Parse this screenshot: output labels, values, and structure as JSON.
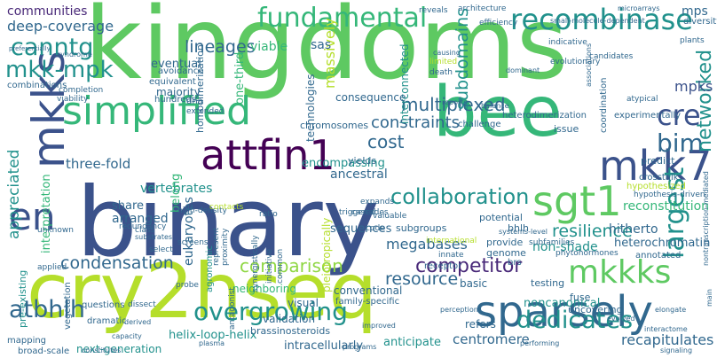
{
  "words": [
    {
      "text": "kingdoms",
      "color": "#5ec962"
    },
    {
      "text": "binary",
      "color": "#3b528b"
    },
    {
      "text": "cry2hseq",
      "color": "#b5de2b"
    },
    {
      "text": "bee",
      "color": "#35b779"
    },
    {
      "text": "attfin1",
      "color": "#440154"
    },
    {
      "text": "simplified",
      "color": "#35b779"
    },
    {
      "text": "sparsely",
      "color": "#31688e"
    },
    {
      "text": "mkks",
      "color": "#3b528b"
    },
    {
      "text": "en",
      "color": "#3b528b"
    },
    {
      "text": "sgt1",
      "color": "#5ec962"
    },
    {
      "text": "mkk7",
      "color": "#3b528b"
    },
    {
      "text": "mkkks",
      "color": "#5ec962"
    },
    {
      "text": "recombinase",
      "color": "#21918c"
    },
    {
      "text": "fundamental",
      "color": "#35b779"
    },
    {
      "text": "overgrowing",
      "color": "#21918c"
    },
    {
      "text": "dedicates",
      "color": "#21918c"
    },
    {
      "text": "mkk-mpk",
      "color": "#21918c"
    },
    {
      "text": "largest",
      "color": "#21918c"
    },
    {
      "text": "canntg",
      "color": "#21918c"
    },
    {
      "text": "atbhlh",
      "color": "#31688e"
    },
    {
      "text": "cre",
      "color": "#3b528b"
    },
    {
      "text": "bim",
      "color": "#31688e"
    },
    {
      "text": "networked",
      "color": "#21918c"
    },
    {
      "text": "collaboration",
      "color": "#21918c"
    },
    {
      "text": "competitor",
      "color": "#482878"
    },
    {
      "text": "resource",
      "color": "#31688e"
    },
    {
      "text": "condensation",
      "color": "#31688e"
    },
    {
      "text": "comparison",
      "color": "#8fd744"
    },
    {
      "text": "multiplexed",
      "color": "#31688e"
    },
    {
      "text": "resilience",
      "color": "#21918c"
    },
    {
      "text": "lineages",
      "color": "#31688e"
    },
    {
      "text": "deep-coverage",
      "color": "#31688e"
    },
    {
      "text": "communities",
      "color": "#482878"
    },
    {
      "text": "subdomains",
      "color": "#21918c"
    },
    {
      "text": "constraints",
      "color": "#31688e"
    },
    {
      "text": "megabases",
      "color": "#31688e"
    },
    {
      "text": "recapitulates",
      "color": "#31688e"
    },
    {
      "text": "cost",
      "color": "#31688e"
    },
    {
      "text": "mps",
      "color": "#31688e"
    },
    {
      "text": "mpks",
      "color": "#3b528b"
    },
    {
      "text": "appreciated",
      "color": "#21918c"
    },
    {
      "text": "three-fold",
      "color": "#31688e"
    },
    {
      "text": "vertebrates",
      "color": "#21918c"
    },
    {
      "text": "encompassing",
      "color": "#21918c"
    },
    {
      "text": "interpretation",
      "color": "#35b779"
    },
    {
      "text": "condensation",
      "color": "#31688e"
    },
    {
      "text": "non-shade",
      "color": "#21918c"
    },
    {
      "text": "noncanonical",
      "color": "#21918c"
    },
    {
      "text": "centromere",
      "color": "#31688e"
    },
    {
      "text": "intracellularly",
      "color": "#31688e"
    },
    {
      "text": "helix-loop-helix",
      "color": "#21918c"
    },
    {
      "text": "next-generation",
      "color": "#21918c"
    },
    {
      "text": "anticipate",
      "color": "#21918c"
    },
    {
      "text": "massively",
      "color": "#b5de2b"
    },
    {
      "text": "homodimerization",
      "color": "#31688e"
    },
    {
      "text": "one-third",
      "color": "#35b779"
    },
    {
      "text": "eventual",
      "color": "#31688e"
    },
    {
      "text": "majority",
      "color": "#31688e"
    },
    {
      "text": "avoidance",
      "color": "#31688e"
    },
    {
      "text": "equivalent",
      "color": "#31688e"
    },
    {
      "text": "hundreds",
      "color": "#31688e"
    },
    {
      "text": "dna",
      "color": "#31688e"
    },
    {
      "text": "viable",
      "color": "#35b779"
    },
    {
      "text": "sas",
      "color": "#31688e"
    },
    {
      "text": "combinations",
      "color": "#31688e"
    },
    {
      "text": "completion",
      "color": "#31688e"
    },
    {
      "text": "viability",
      "color": "#31688e"
    },
    {
      "text": "pre-existing",
      "color": "#21918c"
    },
    {
      "text": "agronomic",
      "color": "#21918c"
    },
    {
      "text": "eukaryotes",
      "color": "#31688e"
    },
    {
      "text": "arranged",
      "color": "#31688e"
    },
    {
      "text": "share",
      "color": "#31688e"
    },
    {
      "text": "belong",
      "color": "#35b779"
    },
    {
      "text": "pleiotropically",
      "color": "#b5de2b"
    },
    {
      "text": "ancestral",
      "color": "#31688e"
    },
    {
      "text": "yields",
      "color": "#31688e"
    },
    {
      "text": "bhlh",
      "color": "#31688e"
    },
    {
      "text": "potential",
      "color": "#31688e"
    },
    {
      "text": "hitherto",
      "color": "#31688e"
    },
    {
      "text": "reconstitution",
      "color": "#35b779"
    },
    {
      "text": "heterochromatin",
      "color": "#31688e"
    },
    {
      "text": "annotated",
      "color": "#31688e"
    },
    {
      "text": "sequences",
      "color": "#31688e"
    },
    {
      "text": "subgroups",
      "color": "#31688e"
    },
    {
      "text": "visual",
      "color": "#31688e"
    },
    {
      "text": "validation",
      "color": "#31688e"
    },
    {
      "text": "neighboring",
      "color": "#35b779"
    },
    {
      "text": "brassinosteroids",
      "color": "#31688e"
    },
    {
      "text": "conventional",
      "color": "#31688e"
    },
    {
      "text": "family-specific",
      "color": "#31688e"
    },
    {
      "text": "basic",
      "color": "#31688e"
    },
    {
      "text": "refers",
      "color": "#31688e"
    },
    {
      "text": "testing",
      "color": "#31688e"
    },
    {
      "text": "fuse",
      "color": "#31688e"
    },
    {
      "text": "uncovering",
      "color": "#31688e"
    },
    {
      "text": "technologies",
      "color": "#31688e"
    },
    {
      "text": "interconnected",
      "color": "#21918c"
    },
    {
      "text": "chromosomes",
      "color": "#31688e"
    },
    {
      "text": "consequence",
      "color": "#31688e"
    },
    {
      "text": "experimentally",
      "color": "#31688e"
    },
    {
      "text": "coordination",
      "color": "#31688e"
    },
    {
      "text": "issue",
      "color": "#31688e"
    },
    {
      "text": "predict",
      "color": "#31688e"
    },
    {
      "text": "crosstalk",
      "color": "#31688e"
    },
    {
      "text": "hypothesized",
      "color": "#b5de2b"
    },
    {
      "text": "hypothesis-driven",
      "color": "#31688e"
    },
    {
      "text": "subfamilies",
      "color": "#31688e"
    },
    {
      "text": "phytohormones",
      "color": "#31688e"
    },
    {
      "text": "provide",
      "color": "#31688e"
    },
    {
      "text": "genome",
      "color": "#31688e"
    },
    {
      "text": "brs",
      "color": "#31688e"
    },
    {
      "text": "international",
      "color": "#b5de2b"
    },
    {
      "text": "receptor",
      "color": "#31688e"
    },
    {
      "text": "innate",
      "color": "#31688e"
    },
    {
      "text": "mapping",
      "color": "#31688e"
    },
    {
      "text": "vegetation",
      "color": "#31688e"
    },
    {
      "text": "questions",
      "color": "#31688e"
    },
    {
      "text": "dramatic",
      "color": "#31688e"
    },
    {
      "text": "broad-scale",
      "color": "#31688e"
    },
    {
      "text": "unknown",
      "color": "#31688e"
    },
    {
      "text": "applied",
      "color": "#31688e"
    },
    {
      "text": "class",
      "color": "#31688e"
    },
    {
      "text": "select",
      "color": "#31688e"
    },
    {
      "text": "probe",
      "color": "#31688e"
    },
    {
      "text": "dissect",
      "color": "#31688e"
    },
    {
      "text": "redundancy",
      "color": "#31688e"
    },
    {
      "text": "screens",
      "color": "#31688e"
    },
    {
      "text": "proximity",
      "color": "#31688e"
    },
    {
      "text": "represent",
      "color": "#31688e"
    },
    {
      "text": "high-density",
      "color": "#31688e"
    },
    {
      "text": "synergistically",
      "color": "#31688e"
    },
    {
      "text": "initiative",
      "color": "#31688e"
    },
    {
      "text": "common",
      "color": "#31688e"
    },
    {
      "text": "antagonist",
      "color": "#31688e"
    },
    {
      "text": "ratio",
      "color": "#31688e"
    },
    {
      "text": "triggered",
      "color": "#31688e"
    },
    {
      "text": "expands",
      "color": "#31688e"
    },
    {
      "text": "cascades",
      "color": "#31688e"
    },
    {
      "text": "valuable",
      "color": "#31688e"
    },
    {
      "text": "code",
      "color": "#31688e"
    },
    {
      "text": "challenge",
      "color": "#31688e"
    },
    {
      "text": "heterodimerization",
      "color": "#31688e"
    },
    {
      "text": "extended",
      "color": "#31688e"
    },
    {
      "text": "atypical",
      "color": "#31688e"
    },
    {
      "text": "diversity",
      "color": "#31688e"
    },
    {
      "text": "indicative",
      "color": "#31688e"
    },
    {
      "text": "efficiency",
      "color": "#31688e"
    },
    {
      "text": "architecture",
      "color": "#31688e"
    },
    {
      "text": "reveals",
      "color": "#31688e"
    },
    {
      "text": "candidates",
      "color": "#31688e"
    },
    {
      "text": "evolutionary",
      "color": "#31688e"
    },
    {
      "text": "plants",
      "color": "#31688e"
    },
    {
      "text": "limited",
      "color": "#b5de2b"
    },
    {
      "text": "death",
      "color": "#31688e"
    },
    {
      "text": "reports",
      "color": "#31688e"
    },
    {
      "text": "balance",
      "color": "#31688e"
    },
    {
      "text": "causing",
      "color": "#31688e"
    },
    {
      "text": "associations",
      "color": "#31688e"
    },
    {
      "text": "dominant",
      "color": "#31688e"
    },
    {
      "text": "small-molecule-dependent",
      "color": "#31688e"
    },
    {
      "text": "microarrays",
      "color": "#31688e"
    },
    {
      "text": "perception",
      "color": "#31688e"
    },
    {
      "text": "evolved",
      "color": "#31688e"
    },
    {
      "text": "elongate",
      "color": "#31688e"
    },
    {
      "text": "performing",
      "color": "#31688e"
    },
    {
      "text": "programs",
      "color": "#31688e"
    },
    {
      "text": "plasma",
      "color": "#31688e"
    },
    {
      "text": "capacity",
      "color": "#31688e"
    },
    {
      "text": "substrates",
      "color": "#31688e"
    },
    {
      "text": "derived",
      "color": "#31688e"
    },
    {
      "text": "contacts",
      "color": "#b5de2b"
    },
    {
      "text": "systems-level",
      "color": "#31688e"
    },
    {
      "text": "nontranscription-mediated",
      "color": "#31688e"
    },
    {
      "text": "interactome",
      "color": "#31688e"
    },
    {
      "text": "signaling",
      "color": "#31688e"
    },
    {
      "text": "preferentially",
      "color": "#31688e"
    },
    {
      "text": "syndrome",
      "color": "#31688e"
    },
    {
      "text": "constitutes",
      "color": "#31688e"
    },
    {
      "text": "improved",
      "color": "#31688e"
    },
    {
      "text": "main",
      "color": "#31688e"
    }
  ]
}
